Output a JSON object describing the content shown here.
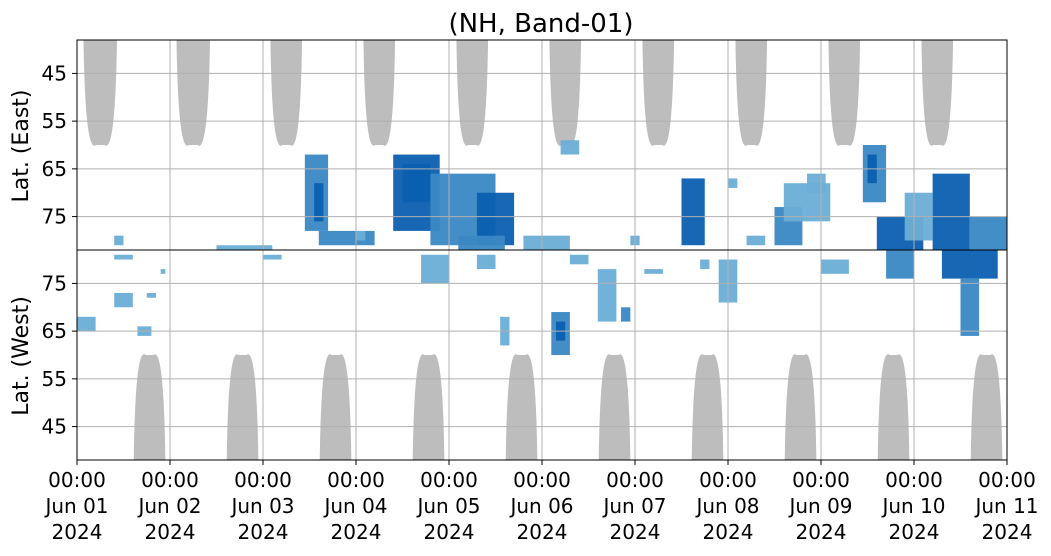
{
  "chart_data": {
    "type": "heatmap",
    "title": "(NH, Band-01)",
    "xlabel": "",
    "ylabel_top": "Lat. (East)",
    "ylabel_bottom": "Lat. (West)",
    "x_range": [
      "2024-06-01 00:00",
      "2024-06-11 00:00"
    ],
    "x_ticks": [
      {
        "time": "00:00",
        "date": "Jun 01",
        "year": "2024"
      },
      {
        "time": "00:00",
        "date": "Jun 02",
        "year": "2024"
      },
      {
        "time": "00:00",
        "date": "Jun 03",
        "year": "2024"
      },
      {
        "time": "00:00",
        "date": "Jun 04",
        "year": "2024"
      },
      {
        "time": "00:00",
        "date": "Jun 05",
        "year": "2024"
      },
      {
        "time": "00:00",
        "date": "Jun 06",
        "year": "2024"
      },
      {
        "time": "00:00",
        "date": "Jun 07",
        "year": "2024"
      },
      {
        "time": "00:00",
        "date": "Jun 08",
        "year": "2024"
      },
      {
        "time": "00:00",
        "date": "Jun 09",
        "year": "2024"
      },
      {
        "time": "00:00",
        "date": "Jun 10",
        "year": "2024"
      },
      {
        "time": "00:00",
        "date": "Jun 11",
        "year": "2024"
      }
    ],
    "y_ticks_top": [
      "45",
      "55",
      "65",
      "75"
    ],
    "y_ticks_bottom": [
      "75",
      "65",
      "55",
      "45"
    ],
    "y_range_lat": [
      38,
      82
    ],
    "grid": true,
    "colors": {
      "shade": "#bdbdbd",
      "activity_light": "#6baed6",
      "activity_mid": "#3a88c4",
      "activity_dark": "#0b5fb0",
      "grid": "#b0b0b0"
    },
    "shaded_regions_top": [
      {
        "center_day": 0.25,
        "half_width_days": 0.18,
        "lat_low": 60
      },
      {
        "center_day": 1.25,
        "half_width_days": 0.18,
        "lat_low": 60
      },
      {
        "center_day": 2.25,
        "half_width_days": 0.17,
        "lat_low": 60
      },
      {
        "center_day": 3.25,
        "half_width_days": 0.17,
        "lat_low": 60
      },
      {
        "center_day": 4.25,
        "half_width_days": 0.17,
        "lat_low": 60
      },
      {
        "center_day": 5.25,
        "half_width_days": 0.17,
        "lat_low": 60
      },
      {
        "center_day": 6.25,
        "half_width_days": 0.17,
        "lat_low": 60
      },
      {
        "center_day": 7.25,
        "half_width_days": 0.17,
        "lat_low": 60
      },
      {
        "center_day": 8.25,
        "half_width_days": 0.17,
        "lat_low": 60
      },
      {
        "center_day": 9.25,
        "half_width_days": 0.17,
        "lat_low": 60
      }
    ],
    "shaded_regions_bottom": [
      {
        "center_day": 0.78,
        "half_width_days": 0.17,
        "lat_low": 60
      },
      {
        "center_day": 1.78,
        "half_width_days": 0.17,
        "lat_low": 60
      },
      {
        "center_day": 2.78,
        "half_width_days": 0.17,
        "lat_low": 60
      },
      {
        "center_day": 3.78,
        "half_width_days": 0.17,
        "lat_low": 60
      },
      {
        "center_day": 4.78,
        "half_width_days": 0.17,
        "lat_low": 60
      },
      {
        "center_day": 5.78,
        "half_width_days": 0.17,
        "lat_low": 60
      },
      {
        "center_day": 6.78,
        "half_width_days": 0.17,
        "lat_low": 60
      },
      {
        "center_day": 7.78,
        "half_width_days": 0.17,
        "lat_low": 60
      },
      {
        "center_day": 8.78,
        "half_width_days": 0.17,
        "lat_low": 60
      },
      {
        "center_day": 9.78,
        "half_width_days": 0.17,
        "lat_low": 60
      }
    ],
    "activity_patches": [
      {
        "hemisphere": "west",
        "day_start": 0.0,
        "day_end": 0.2,
        "lat_low": 65,
        "lat_high": 68,
        "intensity": 1
      },
      {
        "hemisphere": "east",
        "day_start": 0.4,
        "day_end": 0.5,
        "lat_low": 79,
        "lat_high": 81,
        "intensity": 1
      },
      {
        "hemisphere": "west",
        "day_start": 0.4,
        "day_end": 0.6,
        "lat_low": 80,
        "lat_high": 81,
        "intensity": 1
      },
      {
        "hemisphere": "west",
        "day_start": 0.4,
        "day_end": 0.6,
        "lat_low": 70,
        "lat_high": 73,
        "intensity": 1
      },
      {
        "hemisphere": "west",
        "day_start": 0.65,
        "day_end": 0.8,
        "lat_low": 64,
        "lat_high": 66,
        "intensity": 1
      },
      {
        "hemisphere": "west",
        "day_start": 0.75,
        "day_end": 0.85,
        "lat_low": 72,
        "lat_high": 73,
        "intensity": 1
      },
      {
        "hemisphere": "west",
        "day_start": 0.9,
        "day_end": 0.95,
        "lat_low": 77,
        "lat_high": 78,
        "intensity": 1
      },
      {
        "hemisphere": "east",
        "day_start": 1.5,
        "day_end": 2.1,
        "lat_low": 81,
        "lat_high": 82,
        "intensity": 1
      },
      {
        "hemisphere": "west",
        "day_start": 2.0,
        "day_end": 2.2,
        "lat_low": 80,
        "lat_high": 81,
        "intensity": 1
      },
      {
        "hemisphere": "east",
        "day_start": 2.45,
        "day_end": 2.7,
        "lat_low": 62,
        "lat_high": 78,
        "intensity": 2
      },
      {
        "hemisphere": "east",
        "day_start": 2.55,
        "day_end": 2.65,
        "lat_low": 68,
        "lat_high": 76,
        "intensity": 3
      },
      {
        "hemisphere": "east",
        "day_start": 2.6,
        "day_end": 3.2,
        "lat_low": 78,
        "lat_high": 81,
        "intensity": 2
      },
      {
        "hemisphere": "east",
        "day_start": 3.0,
        "day_end": 3.1,
        "lat_low": 78,
        "lat_high": 80,
        "intensity": 1
      },
      {
        "hemisphere": "east",
        "day_start": 3.4,
        "day_end": 3.9,
        "lat_low": 62,
        "lat_high": 78,
        "intensity": 3
      },
      {
        "hemisphere": "east",
        "day_start": 3.5,
        "day_end": 3.8,
        "lat_low": 64,
        "lat_high": 72,
        "intensity": 3
      },
      {
        "hemisphere": "east",
        "day_start": 3.8,
        "day_end": 4.5,
        "lat_low": 66,
        "lat_high": 81,
        "intensity": 2
      },
      {
        "hemisphere": "east",
        "day_start": 4.3,
        "day_end": 4.7,
        "lat_low": 70,
        "lat_high": 81,
        "intensity": 3
      },
      {
        "hemisphere": "east",
        "day_start": 4.1,
        "day_end": 4.6,
        "lat_low": 79,
        "lat_high": 82,
        "intensity": 2
      },
      {
        "hemisphere": "west",
        "day_start": 3.7,
        "day_end": 4.0,
        "lat_low": 75,
        "lat_high": 81,
        "intensity": 1
      },
      {
        "hemisphere": "west",
        "day_start": 4.3,
        "day_end": 4.5,
        "lat_low": 78,
        "lat_high": 81,
        "intensity": 1
      },
      {
        "hemisphere": "west",
        "day_start": 4.55,
        "day_end": 4.65,
        "lat_low": 62,
        "lat_high": 68,
        "intensity": 1
      },
      {
        "hemisphere": "east",
        "day_start": 4.8,
        "day_end": 5.3,
        "lat_low": 79,
        "lat_high": 82,
        "intensity": 1
      },
      {
        "hemisphere": "west",
        "day_start": 5.1,
        "day_end": 5.3,
        "lat_low": 60,
        "lat_high": 69,
        "intensity": 2
      },
      {
        "hemisphere": "west",
        "day_start": 5.15,
        "day_end": 5.25,
        "lat_low": 63,
        "lat_high": 67,
        "intensity": 3
      },
      {
        "hemisphere": "west",
        "day_start": 5.3,
        "day_end": 5.5,
        "lat_low": 79,
        "lat_high": 81,
        "intensity": 1
      },
      {
        "hemisphere": "east",
        "day_start": 5.2,
        "day_end": 5.4,
        "lat_low": 59,
        "lat_high": 62,
        "intensity": 1
      },
      {
        "hemisphere": "west",
        "day_start": 5.6,
        "day_end": 5.8,
        "lat_low": 67,
        "lat_high": 78,
        "intensity": 1
      },
      {
        "hemisphere": "west",
        "day_start": 5.85,
        "day_end": 5.95,
        "lat_low": 67,
        "lat_high": 70,
        "intensity": 2
      },
      {
        "hemisphere": "east",
        "day_start": 5.95,
        "day_end": 6.05,
        "lat_low": 79,
        "lat_high": 81,
        "intensity": 1
      },
      {
        "hemisphere": "west",
        "day_start": 6.1,
        "day_end": 6.3,
        "lat_low": 77,
        "lat_high": 78,
        "intensity": 1
      },
      {
        "hemisphere": "east",
        "day_start": 6.5,
        "day_end": 6.75,
        "lat_low": 67,
        "lat_high": 81,
        "intensity": 3
      },
      {
        "hemisphere": "west",
        "day_start": 6.7,
        "day_end": 6.8,
        "lat_low": 78,
        "lat_high": 80,
        "intensity": 1
      },
      {
        "hemisphere": "west",
        "day_start": 6.9,
        "day_end": 7.1,
        "lat_low": 71,
        "lat_high": 80,
        "intensity": 1
      },
      {
        "hemisphere": "east",
        "day_start": 7.0,
        "day_end": 7.1,
        "lat_low": 67,
        "lat_high": 69,
        "intensity": 1
      },
      {
        "hemisphere": "east",
        "day_start": 7.2,
        "day_end": 7.4,
        "lat_low": 79,
        "lat_high": 81,
        "intensity": 1
      },
      {
        "hemisphere": "east",
        "day_start": 7.5,
        "day_end": 7.8,
        "lat_low": 73,
        "lat_high": 81,
        "intensity": 2
      },
      {
        "hemisphere": "east",
        "day_start": 7.6,
        "day_end": 8.1,
        "lat_low": 68,
        "lat_high": 76,
        "intensity": 1
      },
      {
        "hemisphere": "east",
        "day_start": 7.85,
        "day_end": 8.05,
        "lat_low": 66,
        "lat_high": 70,
        "intensity": 1
      },
      {
        "hemisphere": "west",
        "day_start": 8.0,
        "day_end": 8.3,
        "lat_low": 77,
        "lat_high": 80,
        "intensity": 1
      },
      {
        "hemisphere": "east",
        "day_start": 8.45,
        "day_end": 8.7,
        "lat_low": 60,
        "lat_high": 72,
        "intensity": 2
      },
      {
        "hemisphere": "east",
        "day_start": 8.5,
        "day_end": 8.6,
        "lat_low": 62,
        "lat_high": 68,
        "intensity": 3
      },
      {
        "hemisphere": "east",
        "day_start": 8.6,
        "day_end": 9.1,
        "lat_low": 75,
        "lat_high": 82,
        "intensity": 3
      },
      {
        "hemisphere": "west",
        "day_start": 8.7,
        "day_end": 9.0,
        "lat_low": 76,
        "lat_high": 82,
        "intensity": 2
      },
      {
        "hemisphere": "east",
        "day_start": 9.2,
        "day_end": 9.6,
        "lat_low": 66,
        "lat_high": 82,
        "intensity": 3
      },
      {
        "hemisphere": "east",
        "day_start": 9.6,
        "day_end": 10.0,
        "lat_low": 75,
        "lat_high": 82,
        "intensity": 2
      },
      {
        "hemisphere": "west",
        "day_start": 9.3,
        "day_end": 9.9,
        "lat_low": 76,
        "lat_high": 82,
        "intensity": 3
      },
      {
        "hemisphere": "west",
        "day_start": 9.5,
        "day_end": 9.7,
        "lat_low": 64,
        "lat_high": 76,
        "intensity": 2
      },
      {
        "hemisphere": "east",
        "day_start": 8.9,
        "day_end": 9.2,
        "lat_low": 70,
        "lat_high": 80,
        "intensity": 1
      }
    ]
  }
}
